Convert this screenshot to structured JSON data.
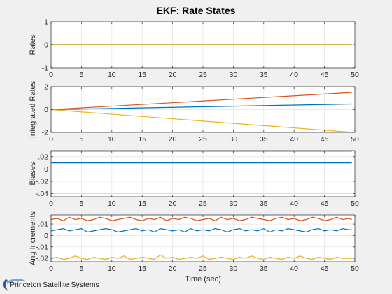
{
  "figure": {
    "title": "EKF: Rate States",
    "xlabel": "Time (sec)",
    "logo_text": "Princeton Satellite Systems"
  },
  "chart_data": [
    {
      "type": "line",
      "ylabel": "Rates",
      "xlim": [
        0,
        50
      ],
      "ylim": [
        -1,
        1
      ],
      "xticks": [
        0,
        5,
        10,
        15,
        20,
        25,
        30,
        35,
        40,
        45,
        50
      ],
      "yticks": [
        -1,
        0,
        1
      ],
      "grid": true,
      "series": [
        {
          "color": "#0072bd",
          "x": [
            0,
            49.5
          ],
          "y": [
            0,
            0
          ]
        },
        {
          "color": "#d95319",
          "x": [
            0,
            49.5
          ],
          "y": [
            0,
            0
          ]
        },
        {
          "color": "#edb120",
          "x": [
            0,
            49.5
          ],
          "y": [
            0,
            0
          ]
        }
      ]
    },
    {
      "type": "line",
      "ylabel": "Integrated Rates",
      "xlim": [
        0,
        50
      ],
      "ylim": [
        -2,
        2
      ],
      "xticks": [
        0,
        5,
        10,
        15,
        20,
        25,
        30,
        35,
        40,
        45,
        50
      ],
      "yticks": [
        -2,
        0,
        2
      ],
      "grid": true,
      "series": [
        {
          "color": "#0072bd",
          "x": [
            0,
            49.5
          ],
          "y": [
            0,
            0.49
          ]
        },
        {
          "color": "#d95319",
          "x": [
            0,
            49.5
          ],
          "y": [
            0,
            1.5
          ]
        },
        {
          "color": "#edb120",
          "x": [
            0,
            49.5
          ],
          "y": [
            0,
            -1.99
          ]
        }
      ]
    },
    {
      "type": "line",
      "ylabel": "Biases",
      "xlim": [
        0,
        50
      ],
      "ylim": [
        -0.045,
        0.03
      ],
      "xticks": [
        0,
        5,
        10,
        15,
        20,
        25,
        30,
        35,
        40,
        45,
        50
      ],
      "yticks": [
        -0.04,
        -0.02,
        0,
        0.02
      ],
      "grid": true,
      "series": [
        {
          "color": "#0072bd",
          "x": [
            0,
            49.5
          ],
          "y": [
            0.01,
            0.01
          ]
        },
        {
          "color": "#d95319",
          "x": [
            0,
            49.5
          ],
          "y": [
            0.029,
            0.029
          ]
        },
        {
          "color": "#edb120",
          "x": [
            0,
            49.5
          ],
          "y": [
            -0.039,
            -0.039
          ]
        }
      ]
    },
    {
      "type": "line",
      "ylabel": "Ang Increments",
      "xlim": [
        0,
        50
      ],
      "ylim": [
        -0.023,
        0.018
      ],
      "xticks": [
        0,
        5,
        10,
        15,
        20,
        25,
        30,
        35,
        40,
        45,
        50
      ],
      "yticks": [
        -0.02,
        -0.01,
        0,
        0.01
      ],
      "grid": true,
      "series": [
        {
          "color": "#0072bd",
          "x": [
            0,
            1,
            2,
            3,
            4,
            5,
            6,
            7,
            8,
            9,
            10,
            11,
            12,
            13,
            14,
            15,
            16,
            17,
            18,
            19,
            20,
            21,
            22,
            23,
            24,
            25,
            26,
            27,
            28,
            29,
            30,
            31,
            32,
            33,
            34,
            35,
            36,
            37,
            38,
            39,
            40,
            41,
            42,
            43,
            44,
            45,
            46,
            47,
            48,
            49,
            49.5
          ],
          "y": [
            0.004,
            0.005,
            0.006,
            0.004,
            0.005,
            0.006,
            0.003,
            0.004,
            0.005,
            0.006,
            0.005,
            0.003,
            0.004,
            0.005,
            0.006,
            0.004,
            0.005,
            0.003,
            0.006,
            0.005,
            0.004,
            0.005,
            0.003,
            0.006,
            0.004,
            0.005,
            0.004,
            0.006,
            0.005,
            0.003,
            0.005,
            0.006,
            0.004,
            0.005,
            0.004,
            0.006,
            0.003,
            0.005,
            0.004,
            0.006,
            0.005,
            0.004,
            0.003,
            0.005,
            0.006,
            0.004,
            0.005,
            0.004,
            0.006,
            0.005,
            0.005
          ]
        },
        {
          "color": "#d95319",
          "x": [
            0,
            1,
            2,
            3,
            4,
            5,
            6,
            7,
            8,
            9,
            10,
            11,
            12,
            13,
            14,
            15,
            16,
            17,
            18,
            19,
            20,
            21,
            22,
            23,
            24,
            25,
            26,
            27,
            28,
            29,
            30,
            31,
            32,
            33,
            34,
            35,
            36,
            37,
            38,
            39,
            40,
            41,
            42,
            43,
            44,
            45,
            46,
            47,
            48,
            49,
            49.5
          ],
          "y": [
            0.014,
            0.015,
            0.013,
            0.016,
            0.014,
            0.015,
            0.013,
            0.014,
            0.016,
            0.015,
            0.013,
            0.014,
            0.015,
            0.016,
            0.014,
            0.013,
            0.015,
            0.014,
            0.016,
            0.013,
            0.015,
            0.014,
            0.016,
            0.015,
            0.013,
            0.014,
            0.015,
            0.013,
            0.016,
            0.014,
            0.015,
            0.013,
            0.014,
            0.016,
            0.015,
            0.014,
            0.013,
            0.015,
            0.016,
            0.014,
            0.015,
            0.013,
            0.014,
            0.016,
            0.015,
            0.013,
            0.014,
            0.016,
            0.014,
            0.015,
            0.014
          ]
        },
        {
          "color": "#edb120",
          "x": [
            0,
            1,
            2,
            3,
            4,
            5,
            6,
            7,
            8,
            9,
            10,
            11,
            12,
            13,
            14,
            15,
            16,
            17,
            18,
            19,
            20,
            21,
            22,
            23,
            24,
            25,
            26,
            27,
            28,
            29,
            30,
            31,
            32,
            33,
            34,
            35,
            36,
            37,
            38,
            39,
            40,
            41,
            42,
            43,
            44,
            45,
            46,
            47,
            48,
            49,
            49.5
          ],
          "y": [
            -0.02,
            -0.019,
            -0.021,
            -0.02,
            -0.018,
            -0.02,
            -0.021,
            -0.019,
            -0.02,
            -0.021,
            -0.019,
            -0.02,
            -0.018,
            -0.021,
            -0.02,
            -0.019,
            -0.02,
            -0.021,
            -0.017,
            -0.02,
            -0.019,
            -0.021,
            -0.02,
            -0.019,
            -0.02,
            -0.018,
            -0.021,
            -0.02,
            -0.019,
            -0.02,
            -0.021,
            -0.019,
            -0.02,
            -0.018,
            -0.02,
            -0.021,
            -0.019,
            -0.02,
            -0.021,
            -0.019,
            -0.02,
            -0.018,
            -0.02,
            -0.021,
            -0.019,
            -0.02,
            -0.021,
            -0.019,
            -0.02,
            -0.02,
            -0.02
          ]
        }
      ]
    }
  ]
}
